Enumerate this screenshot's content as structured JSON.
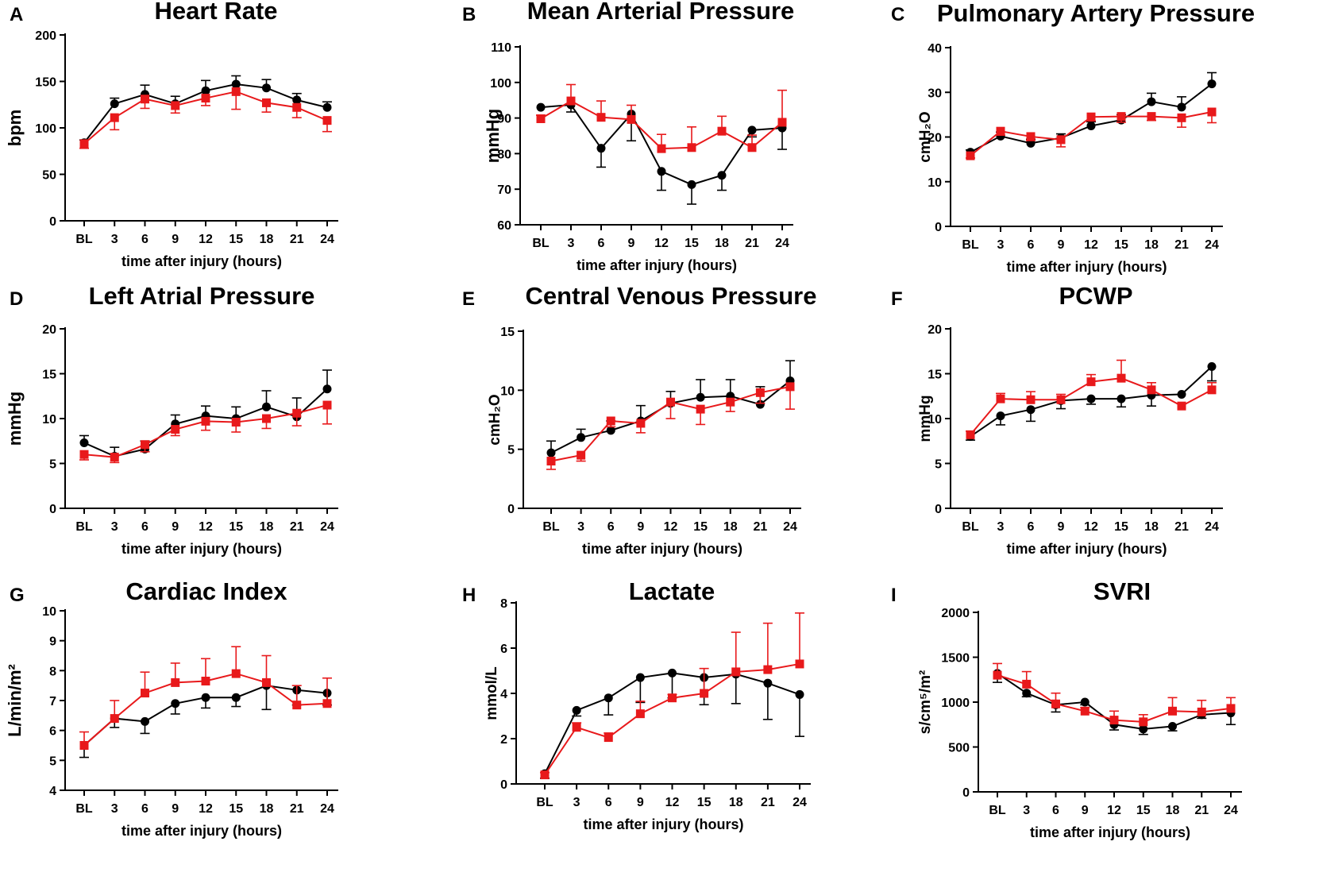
{
  "figure": {
    "x_label": "time after injury (hours)",
    "categories": [
      "BL",
      "3",
      "6",
      "9",
      "12",
      "15",
      "18",
      "21",
      "24"
    ],
    "series_colors": {
      "black": "#000000",
      "red": "#e8191b"
    }
  },
  "chart_data": [
    {
      "id": "A",
      "type": "line",
      "title": "Heart Rate",
      "ylabel": "bpm",
      "ylim": [
        0,
        200
      ],
      "yticks": [
        0,
        50,
        100,
        150,
        200
      ],
      "xlabel": "time after injury (hours)",
      "categories": [
        "BL",
        "3",
        "6",
        "9",
        "12",
        "15",
        "18",
        "21",
        "24"
      ],
      "series": [
        {
          "name": "black",
          "color": "#000000",
          "marker": "circle",
          "values": [
            84,
            126,
            136,
            126,
            140,
            147,
            143,
            130,
            122
          ],
          "err": [
            3,
            6,
            10,
            8,
            11,
            9,
            9,
            7,
            6
          ],
          "err_dir": "up"
        },
        {
          "name": "red",
          "color": "#e8191b",
          "marker": "square",
          "values": [
            83,
            111,
            131,
            124,
            132,
            139,
            127,
            122,
            108
          ],
          "err": [
            5,
            13,
            10,
            8,
            8,
            19,
            10,
            11,
            12
          ],
          "err_dir": "down"
        }
      ]
    },
    {
      "id": "B",
      "type": "line",
      "title": "Mean Arterial Pressure",
      "ylabel": "mmHg",
      "ylim": [
        60,
        110
      ],
      "yticks": [
        60,
        70,
        80,
        90,
        100,
        110
      ],
      "xlabel": "time after injury (hours)",
      "categories": [
        "BL",
        "3",
        "6",
        "9",
        "12",
        "15",
        "18",
        "21",
        "24"
      ],
      "series": [
        {
          "name": "black",
          "color": "#000000",
          "marker": "circle",
          "values": [
            93,
            93.7,
            81.5,
            91.1,
            75,
            71.3,
            73.9,
            86.6,
            87.2
          ],
          "err": [
            0,
            2,
            5.3,
            7.5,
            5.3,
            5.5,
            4.2,
            1.9,
            6
          ],
          "err_dir": "down"
        },
        {
          "name": "red",
          "color": "#e8191b",
          "marker": "square",
          "values": [
            89.8,
            94.8,
            90.2,
            89.6,
            81.4,
            81.7,
            86.3,
            81.7,
            88.8
          ],
          "err": [
            1,
            4.6,
            4.6,
            4,
            4,
            5.8,
            4.2,
            3.5,
            9
          ],
          "err_dir": "up"
        }
      ]
    },
    {
      "id": "C",
      "type": "line",
      "title": "Pulmonary Artery Pressure",
      "ylabel": "cmH₂O",
      "ylim": [
        0,
        40
      ],
      "yticks": [
        0,
        10,
        20,
        30,
        40
      ],
      "xlabel": "time after injury (hours)",
      "categories": [
        "BL",
        "3",
        "6",
        "9",
        "12",
        "15",
        "18",
        "21",
        "24"
      ],
      "series": [
        {
          "name": "black",
          "color": "#000000",
          "marker": "circle",
          "values": [
            16.6,
            20.2,
            18.6,
            19.8,
            22.5,
            23.8,
            27.9,
            26.7,
            31.9
          ],
          "err": [
            0.5,
            0.9,
            0.9,
            0.9,
            0.9,
            1.2,
            1.9,
            2.3,
            2.5
          ],
          "err_dir": "up"
        },
        {
          "name": "red",
          "color": "#e8191b",
          "marker": "square",
          "values": [
            15.8,
            21.3,
            20.1,
            19.4,
            24.5,
            24.6,
            24.6,
            24.3,
            25.6
          ],
          "err": [
            0.5,
            0.9,
            0.9,
            1.6,
            0.9,
            1.3,
            0.9,
            2.1,
            2.4
          ],
          "err_dir": "down"
        }
      ]
    },
    {
      "id": "D",
      "type": "line",
      "title": "Left Atrial Pressure",
      "ylabel": "mmHg",
      "ylim": [
        0,
        20
      ],
      "yticks": [
        0,
        5,
        10,
        15,
        20
      ],
      "xlabel": "time after injury (hours)",
      "categories": [
        "BL",
        "3",
        "6",
        "9",
        "12",
        "15",
        "18",
        "21",
        "24"
      ],
      "series": [
        {
          "name": "black",
          "color": "#000000",
          "marker": "circle",
          "values": [
            7.3,
            5.8,
            6.6,
            9.4,
            10.3,
            10.0,
            11.3,
            10.2,
            13.3
          ],
          "err": [
            0.8,
            1.0,
            0.9,
            1.0,
            1.1,
            1.3,
            1.8,
            2.1,
            2.1
          ],
          "err_dir": "up"
        },
        {
          "name": "red",
          "color": "#e8191b",
          "marker": "square",
          "values": [
            6.0,
            5.7,
            7.1,
            8.8,
            9.7,
            9.6,
            10.0,
            10.6,
            11.5
          ],
          "err": [
            0.6,
            0.6,
            0.8,
            0.7,
            1.0,
            1.1,
            1.1,
            1.4,
            2.1
          ],
          "err_dir": "down"
        }
      ]
    },
    {
      "id": "E",
      "type": "line",
      "title": "Central Venous Pressure",
      "ylabel": "cmH₂O",
      "ylim": [
        0,
        15
      ],
      "yticks": [
        0,
        5,
        10,
        15
      ],
      "xlabel": "time after injury (hours)",
      "categories": [
        "BL",
        "3",
        "6",
        "9",
        "12",
        "15",
        "18",
        "21",
        "24"
      ],
      "series": [
        {
          "name": "black",
          "color": "#000000",
          "marker": "circle",
          "values": [
            4.7,
            6.0,
            6.6,
            7.4,
            8.9,
            9.4,
            9.5,
            8.8,
            10.8
          ],
          "err": [
            1.0,
            0.7,
            0.8,
            1.3,
            1.0,
            1.5,
            1.4,
            1.5,
            1.7
          ],
          "err_dir": "up"
        },
        {
          "name": "red",
          "color": "#e8191b",
          "marker": "square",
          "values": [
            4.0,
            4.5,
            7.4,
            7.2,
            9.0,
            8.4,
            9.0,
            9.8,
            10.3
          ],
          "err": [
            0.7,
            0.5,
            0.5,
            0.8,
            1.4,
            1.3,
            0.8,
            0.9,
            1.9
          ],
          "err_dir": "down"
        }
      ]
    },
    {
      "id": "F",
      "type": "line",
      "title": "PCWP",
      "ylabel": "mmHg",
      "ylim": [
        0,
        20
      ],
      "yticks": [
        0,
        5,
        10,
        15,
        20
      ],
      "xlabel": "time after injury (hours)",
      "categories": [
        "BL",
        "3",
        "6",
        "9",
        "12",
        "15",
        "18",
        "21",
        "24"
      ],
      "series": [
        {
          "name": "black",
          "color": "#000000",
          "marker": "circle",
          "values": [
            8.0,
            10.3,
            11.0,
            12.0,
            12.2,
            12.2,
            12.6,
            12.7,
            15.8
          ],
          "err": [
            0.4,
            1.0,
            1.3,
            0.9,
            0.6,
            0.9,
            1.2,
            0,
            1.6
          ],
          "err_dir": "down"
        },
        {
          "name": "red",
          "color": "#e8191b",
          "marker": "square",
          "values": [
            8.2,
            12.2,
            12.1,
            12.1,
            14.1,
            14.5,
            13.2,
            11.4,
            13.2
          ],
          "err": [
            0.4,
            0.6,
            0.9,
            0.6,
            0.8,
            2.0,
            0.8,
            0.3,
            0.8
          ],
          "err_dir": "up"
        }
      ]
    },
    {
      "id": "G",
      "type": "line",
      "title": "Cardiac Index",
      "ylabel": "L/min/m²",
      "ylim": [
        4,
        10
      ],
      "yticks": [
        4,
        5,
        6,
        7,
        8,
        9,
        10
      ],
      "xlabel": "time after injury (hours)",
      "categories": [
        "BL",
        "3",
        "6",
        "9",
        "12",
        "15",
        "18",
        "21",
        "24"
      ],
      "series": [
        {
          "name": "black",
          "color": "#000000",
          "marker": "circle",
          "values": [
            5.5,
            6.4,
            6.3,
            6.9,
            7.1,
            7.1,
            7.5,
            7.35,
            7.25
          ],
          "err": [
            0.4,
            0.3,
            0.4,
            0.35,
            0.35,
            0.3,
            0.8,
            0.5,
            0.4
          ],
          "err_dir": "down"
        },
        {
          "name": "red",
          "color": "#e8191b",
          "marker": "square",
          "values": [
            5.5,
            6.4,
            7.25,
            7.6,
            7.65,
            7.9,
            7.6,
            6.85,
            6.9
          ],
          "err": [
            0.45,
            0.6,
            0.7,
            0.65,
            0.75,
            0.9,
            0.9,
            0.65,
            0.85
          ],
          "err_dir": "up"
        }
      ]
    },
    {
      "id": "H",
      "type": "line",
      "title": "Lactate",
      "ylabel": "mmol/L",
      "ylim": [
        0,
        8
      ],
      "yticks": [
        0,
        2,
        4,
        6,
        8
      ],
      "xlabel": "time after injury (hours)",
      "categories": [
        "BL",
        "3",
        "6",
        "9",
        "12",
        "15",
        "18",
        "21",
        "24"
      ],
      "series": [
        {
          "name": "black",
          "color": "#000000",
          "marker": "circle",
          "values": [
            0.45,
            3.25,
            3.8,
            4.7,
            4.9,
            4.7,
            4.85,
            4.45,
            3.95
          ],
          "err": [
            0.2,
            0.25,
            0.75,
            1.1,
            1.1,
            1.2,
            1.3,
            1.6,
            1.85
          ],
          "err_dir": "down"
        },
        {
          "name": "red",
          "color": "#e8191b",
          "marker": "square",
          "values": [
            0.4,
            2.5,
            2.05,
            3.1,
            3.8,
            4.0,
            4.95,
            5.05,
            5.3
          ],
          "err": [
            0.1,
            0.2,
            0.2,
            0.55,
            0.15,
            1.1,
            1.75,
            2.05,
            2.25
          ],
          "err_dir": "up"
        }
      ]
    },
    {
      "id": "I",
      "type": "line",
      "title": "SVRI",
      "ylabel": "s/cm⁵/m²",
      "ylim": [
        0,
        2000
      ],
      "yticks": [
        0,
        500,
        1000,
        1500,
        2000
      ],
      "xlabel": "time after injury (hours)",
      "categories": [
        "BL",
        "3",
        "6",
        "9",
        "12",
        "15",
        "18",
        "21",
        "24"
      ],
      "series": [
        {
          "name": "black",
          "color": "#000000",
          "marker": "circle",
          "values": [
            1320,
            1100,
            970,
            1000,
            750,
            700,
            730,
            860,
            880
          ],
          "err": [
            100,
            40,
            80,
            30,
            60,
            60,
            50,
            40,
            130
          ],
          "err_dir": "down"
        },
        {
          "name": "red",
          "color": "#e8191b",
          "marker": "square",
          "values": [
            1300,
            1200,
            980,
            900,
            800,
            780,
            900,
            890,
            930
          ],
          "err": [
            130,
            140,
            120,
            40,
            100,
            80,
            150,
            130,
            120
          ],
          "err_dir": "up"
        }
      ]
    }
  ]
}
